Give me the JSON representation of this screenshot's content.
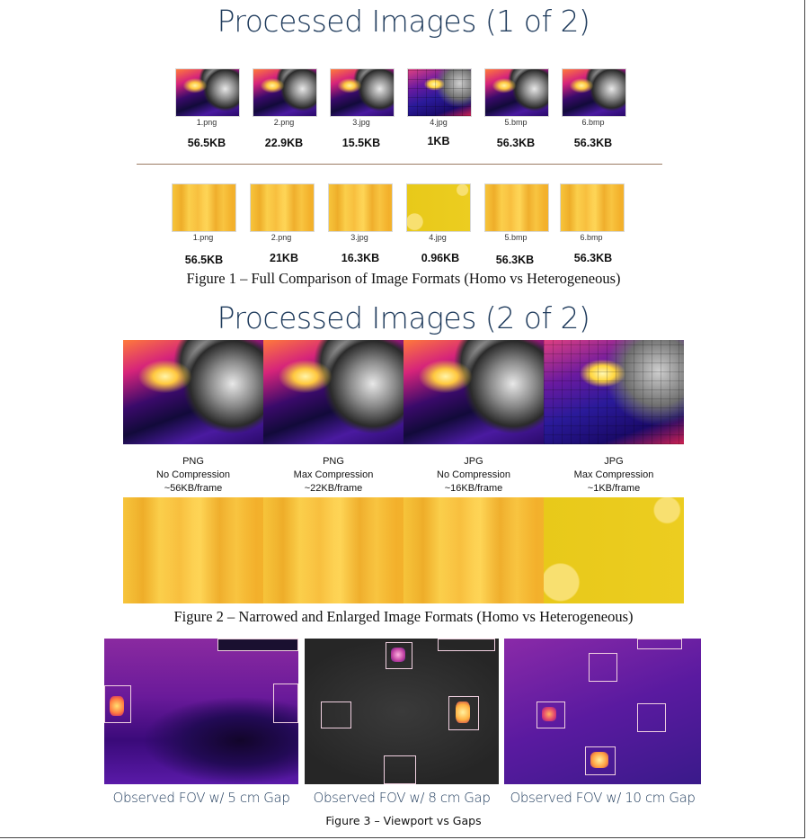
{
  "slide1": {
    "title": "Processed Images (1 of 2)",
    "hetero_row": [
      {
        "name": "1.png",
        "size": "56.5KB"
      },
      {
        "name": "2.png",
        "size": "22.9KB"
      },
      {
        "name": "3.jpg",
        "size": "15.5KB"
      },
      {
        "name": "4.jpg",
        "size": "1KB"
      },
      {
        "name": "5.bmp",
        "size": "56.3KB"
      },
      {
        "name": "6.bmp",
        "size": "56.3KB"
      }
    ],
    "homo_row": [
      {
        "name": "1.png",
        "size": "56.5KB"
      },
      {
        "name": "2.png",
        "size": "21KB"
      },
      {
        "name": "3.jpg",
        "size": "16.3KB"
      },
      {
        "name": "4.jpg",
        "size": "0.96KB"
      },
      {
        "name": "5.bmp",
        "size": "56.3KB"
      },
      {
        "name": "6.bmp",
        "size": "56.3KB"
      }
    ],
    "caption": "Figure 1 – Full Comparison of Image Formats (Homo vs Heterogeneous)"
  },
  "slide2": {
    "title": "Processed Images (2 of 2)",
    "panels": [
      {
        "format": "PNG",
        "mode": "No Compression",
        "size": "~56KB/frame"
      },
      {
        "format": "PNG",
        "mode": "Max Compression",
        "size": "~22KB/frame"
      },
      {
        "format": "JPG",
        "mode": "No Compression",
        "size": "~16KB/frame"
      },
      {
        "format": "JPG",
        "mode": "Max Compression",
        "size": "~1KB/frame"
      }
    ],
    "caption": "Figure 2 – Narrowed and Enlarged Image Formats (Homo vs Heterogeneous)"
  },
  "slide3": {
    "labels": [
      "Observed FOV w/ 5 cm Gap",
      "Observed FOV w/ 8 cm Gap",
      "Observed FOV w/ 10 cm Gap"
    ],
    "caption": "Figure 3 – Viewport vs Gaps"
  }
}
